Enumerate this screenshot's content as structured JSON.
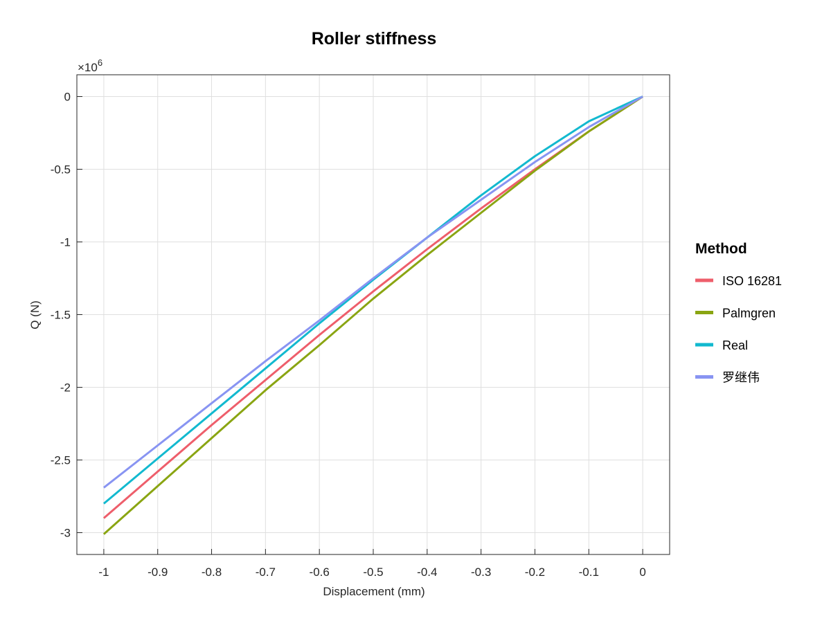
{
  "chart_data": {
    "type": "line",
    "title": "Roller stiffness",
    "xlabel": "Displacement (mm)",
    "ylabel": "Q (N)",
    "y_exponent_base": "×10",
    "y_exponent_power": "6",
    "xlim": [
      -1.05,
      0.05
    ],
    "ylim": [
      -3.15,
      0.15
    ],
    "grid": true,
    "x_ticks": [
      -1,
      -0.9,
      -0.8,
      -0.7,
      -0.6,
      -0.5,
      -0.4,
      -0.3,
      -0.2,
      -0.1,
      0
    ],
    "x_tick_labels": [
      "-1",
      "-0.9",
      "-0.8",
      "-0.7",
      "-0.6",
      "-0.5",
      "-0.4",
      "-0.3",
      "-0.2",
      "-0.1",
      "0"
    ],
    "y_ticks": [
      0,
      -0.5,
      -1,
      -1.5,
      -2,
      -2.5,
      -3
    ],
    "y_tick_labels": [
      "0",
      "-0.5",
      "-1",
      "-1.5",
      "-2",
      "-2.5",
      "-3"
    ],
    "legend": {
      "title": "Method",
      "position": "right"
    },
    "x": [
      -1,
      -0.9,
      -0.8,
      -0.7,
      -0.6,
      -0.5,
      -0.4,
      -0.3,
      -0.2,
      -0.1,
      0
    ],
    "series": [
      {
        "name": "ISO 16281",
        "color": "#EE5E6B",
        "values": [
          -2.9,
          -2.58,
          -2.26,
          -1.95,
          -1.64,
          -1.34,
          -1.05,
          -0.77,
          -0.5,
          -0.24,
          0
        ]
      },
      {
        "name": "Palmgren",
        "color": "#8AA512",
        "values": [
          -3.01,
          -2.68,
          -2.35,
          -2.02,
          -1.71,
          -1.39,
          -1.09,
          -0.8,
          -0.51,
          -0.24,
          0
        ]
      },
      {
        "name": "Real",
        "color": "#12B9CF",
        "values": [
          -2.8,
          -2.49,
          -2.18,
          -1.87,
          -1.56,
          -1.26,
          -0.97,
          -0.68,
          -0.41,
          -0.17,
          0
        ]
      },
      {
        "name": "罗继伟",
        "color": "#8894F2",
        "values": [
          -2.69,
          -2.4,
          -2.11,
          -1.82,
          -1.54,
          -1.25,
          -0.97,
          -0.71,
          -0.45,
          -0.21,
          0
        ]
      }
    ]
  }
}
